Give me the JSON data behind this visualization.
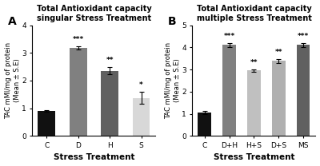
{
  "panel_a": {
    "title": "Total Antioxidant capacity\nsingular Stress Treatment",
    "categories": [
      "C",
      "D",
      "H",
      "S"
    ],
    "values": [
      0.9,
      3.18,
      2.35,
      1.37
    ],
    "errors": [
      0.04,
      0.06,
      0.13,
      0.22
    ],
    "colors": [
      "#111111",
      "#808080",
      "#606060",
      "#d8d8d8"
    ],
    "significance": [
      "",
      "***",
      "**",
      "*"
    ],
    "ylabel": "TAC mMl/mg of protein\n(Mean ± S.E)",
    "xlabel": "Stress Treatment",
    "ylim": [
      0,
      4
    ],
    "yticks": [
      0,
      1,
      2,
      3,
      4
    ],
    "label": "A"
  },
  "panel_b": {
    "title": "Total Antioxidant capacity\nmultiple Stress Treatment",
    "categories": [
      "C",
      "D+H",
      "H+S",
      "D+S",
      "MS"
    ],
    "values": [
      1.05,
      4.1,
      2.95,
      3.38,
      4.1
    ],
    "errors": [
      0.08,
      0.1,
      0.06,
      0.1,
      0.09
    ],
    "colors": [
      "#111111",
      "#808080",
      "#c0c0c0",
      "#b0b0b0",
      "#606060"
    ],
    "significance": [
      "",
      "***",
      "**",
      "**",
      "***"
    ],
    "ylabel": "TAC mMl/mg of protein\n(Mean ± S.E)",
    "xlabel": "Stress Treatment",
    "ylim": [
      0,
      5
    ],
    "yticks": [
      0,
      1,
      2,
      3,
      4,
      5
    ],
    "label": "B"
  },
  "background_color": "#ffffff",
  "sig_fontsize": 6.5,
  "title_fontsize": 7.0,
  "axis_label_fontsize": 7.5,
  "ylabel_fontsize": 6.0,
  "tick_fontsize": 6.5,
  "bar_width": 0.55
}
